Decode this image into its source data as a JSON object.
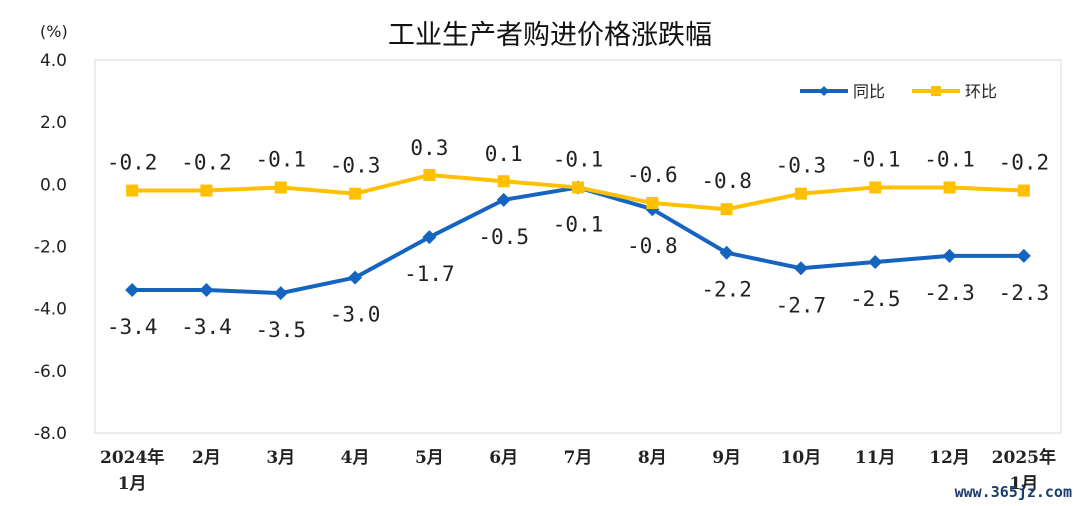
{
  "chart_data": {
    "type": "line",
    "title": "工业生产者购进价格涨跌幅",
    "unit_label": "(%)",
    "categories": [
      [
        "2024年",
        "1月"
      ],
      [
        "2月"
      ],
      [
        "3月"
      ],
      [
        "4月"
      ],
      [
        "5月"
      ],
      [
        "6月"
      ],
      [
        "7月"
      ],
      [
        "8月"
      ],
      [
        "9月"
      ],
      [
        "10月"
      ],
      [
        "11月"
      ],
      [
        "12月"
      ],
      [
        "2025年",
        "1月"
      ]
    ],
    "ylim": [
      -8.0,
      4.0
    ],
    "yticks": [
      "4.0",
      "2.0",
      "0.0",
      "-2.0",
      "-4.0",
      "-6.0",
      "-8.0"
    ],
    "grid": false,
    "legend_position": "top-right",
    "series": [
      {
        "name": "同比",
        "color": "#1565C0",
        "marker": "diamond",
        "values": [
          -3.4,
          -3.4,
          -3.5,
          -3.0,
          -1.7,
          -0.5,
          -0.1,
          -0.8,
          -2.2,
          -2.7,
          -2.5,
          -2.3,
          -2.3
        ],
        "labels": [
          "-3.4",
          "-3.4",
          "-3.5",
          "-3.0",
          "-1.7",
          "-0.5",
          "-0.1",
          "-0.8",
          "-2.2",
          "-2.7",
          "-2.5",
          "-2.3",
          "-2.3"
        ]
      },
      {
        "name": "环比",
        "color": "#FFC000",
        "marker": "square",
        "values": [
          -0.2,
          -0.2,
          -0.1,
          -0.3,
          0.3,
          0.1,
          -0.1,
          -0.6,
          -0.8,
          -0.3,
          -0.1,
          -0.1,
          -0.2
        ],
        "labels": [
          "-0.2",
          "-0.2",
          "-0.1",
          "-0.3",
          "0.3",
          "0.1",
          "-0.1",
          "-0.6",
          "-0.8",
          "-0.3",
          "-0.1",
          "-0.1",
          "-0.2"
        ]
      }
    ]
  },
  "watermark": "www.365jz.com"
}
